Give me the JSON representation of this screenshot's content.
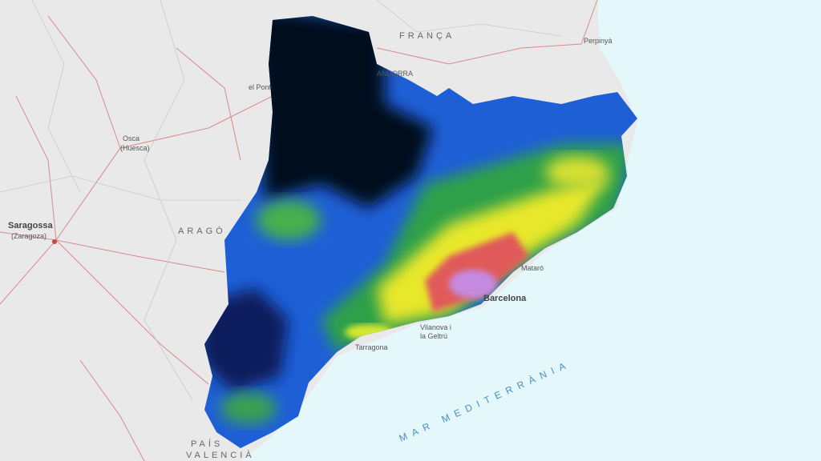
{
  "map": {
    "labels": {
      "france": "FRANÇA",
      "perpignan": "Perpinyà",
      "andorra": "ANDORRA",
      "pont_de_suert": "el Pont de Suert",
      "osca": "Osca",
      "huesca": "(Huesca)",
      "saragossa": "Saragossa",
      "zaragoza": "(Zaragoza)",
      "arago": "ARAGÓ",
      "mataro": "Mataró",
      "barcelona": "Barcelona",
      "vilanova_1": "Vilanova i",
      "vilanova_2": "la Geltrú",
      "tarragona": "Tarragona",
      "sea": "MAR MEDITERRÀNIA",
      "valencia_1": "PAÍS",
      "valencia_2": "VALENCIÀ"
    }
  }
}
